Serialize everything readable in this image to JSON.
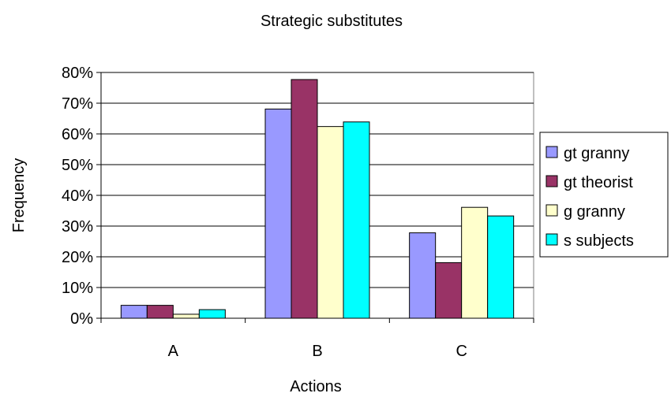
{
  "chart_data": {
    "type": "bar",
    "title": "Strategic substitutes",
    "xlabel": "Actions",
    "ylabel": "Frequency",
    "categories": [
      "A",
      "B",
      "C"
    ],
    "ylim": [
      0,
      0.8
    ],
    "yticks": [
      0,
      0.1,
      0.2,
      0.3,
      0.4,
      0.5,
      0.6,
      0.7,
      0.8
    ],
    "ytick_labels": [
      "0%",
      "10%",
      "20%",
      "30%",
      "40%",
      "50%",
      "60%",
      "70%",
      "80%"
    ],
    "grid": true,
    "legend_position": "right",
    "series": [
      {
        "name": "gt granny",
        "color": "#9999ff",
        "values": [
          0.042,
          0.681,
          0.278
        ]
      },
      {
        "name": "gt theorist",
        "color": "#993366",
        "values": [
          0.042,
          0.777,
          0.181
        ]
      },
      {
        "name": "g granny",
        "color": "#ffffcc",
        "values": [
          0.013,
          0.624,
          0.361
        ]
      },
      {
        "name": "s subjects",
        "color": "#00ffff",
        "values": [
          0.028,
          0.639,
          0.333
        ]
      }
    ]
  }
}
